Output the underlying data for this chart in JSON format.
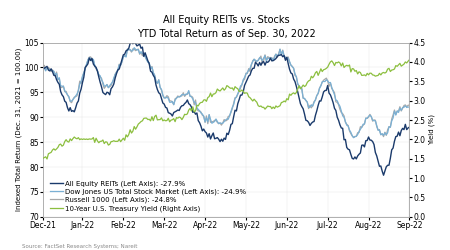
{
  "title_line1": "All Equity REITs vs. Stocks",
  "title_line2": "YTD Total Return as of Sep. 30, 2022",
  "ylabel_left": "Indexed Total Return (Dec. 31, 2021 = 100.00)",
  "ylabel_right": "Yield (%)",
  "source": "Source: FactSet Research Systems; Nareit",
  "ylim_left": [
    70,
    105
  ],
  "ylim_right": [
    0.0,
    4.5
  ],
  "yticks_left": [
    70,
    75,
    80,
    85,
    90,
    95,
    100,
    105
  ],
  "yticks_right": [
    0.0,
    0.5,
    1.0,
    1.5,
    2.0,
    2.5,
    3.0,
    3.5,
    4.0,
    4.5
  ],
  "x_labels": [
    "Dec-21",
    "Jan-22",
    "Feb-22",
    "Mar-22",
    "Apr-22",
    "May-22",
    "Jun-22",
    "Jul-22",
    "Aug-22",
    "Sep-22"
  ],
  "legend_entries": [
    "All Equity REITs (Left Axis): -27.9%",
    "Dow Jones US Total Stock Market (Left Axis): -24.9%",
    "Russell 1000 (Left Axis): -24.8%",
    "10-Year U.S. Treasury Yield (Right Axis)"
  ],
  "colors": {
    "reits": "#1a3a6b",
    "dow": "#7ab0d4",
    "russell": "#a8a8a8",
    "treasury": "#8cbf3f"
  },
  "linewidths": {
    "reits": 1.0,
    "dow": 0.9,
    "russell": 0.9,
    "treasury": 0.9
  },
  "background": "#ffffff",
  "plot_background": "#ffffff",
  "title_fontsize": 7,
  "label_fontsize": 5,
  "tick_fontsize": 5.5,
  "legend_fontsize": 5,
  "source_fontsize": 4
}
